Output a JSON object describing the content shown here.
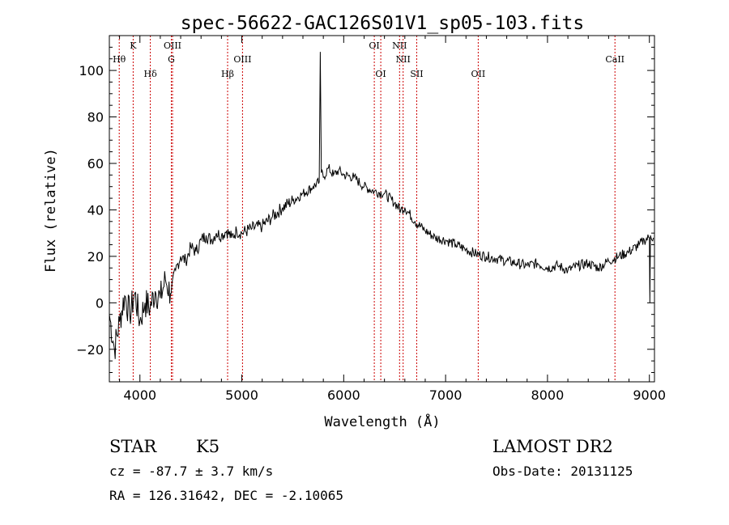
{
  "chart_data": {
    "type": "line",
    "title": "spec-56622-GAC126S01V1_sp05-103.fits",
    "xlabel": "Wavelength (Å)",
    "ylabel": "Flux (relative)",
    "xlim": [
      3700,
      9050
    ],
    "ylim": [
      -34,
      115
    ],
    "x_ticks": [
      4000,
      5000,
      6000,
      7000,
      8000,
      9000
    ],
    "y_ticks": [
      -20,
      0,
      20,
      40,
      60,
      80,
      100
    ],
    "grid": false,
    "line_color": "#000000",
    "marker_color": "#cc0000",
    "series": [
      {
        "x": [
          3700,
          3750,
          3800,
          3850,
          3900,
          3950,
          4000,
          4050,
          4100,
          4150,
          4200,
          4250,
          4300,
          4350,
          4400,
          4450,
          4500,
          4550,
          4600,
          4650,
          4700,
          4750,
          4800,
          4850,
          4900,
          4950,
          5000,
          5100,
          5200,
          5300,
          5400,
          5500,
          5600,
          5700,
          5760,
          5770,
          5780,
          5800,
          5850,
          5900,
          5950,
          6000,
          6100,
          6200,
          6300,
          6400,
          6500,
          6560,
          6600,
          6700,
          6800,
          6900,
          7000,
          7100,
          7200,
          7300,
          7400,
          7500,
          7600,
          7700,
          7800,
          7900,
          8000,
          8100,
          8200,
          8300,
          8400,
          8500,
          8600,
          8700,
          8800,
          8900,
          8950,
          9000,
          9005,
          9010,
          9040
        ],
        "y": [
          -5,
          -20,
          -8,
          3,
          -5,
          4,
          -8,
          0,
          -2,
          5,
          2,
          10,
          4,
          14,
          20,
          18,
          24,
          22,
          27,
          29,
          27,
          30,
          29,
          31,
          28,
          31,
          30,
          32,
          33,
          37,
          41,
          44,
          47,
          50,
          52,
          108,
          56,
          54,
          58,
          55,
          57,
          55,
          54,
          50,
          48,
          47,
          43,
          40,
          41,
          35,
          31,
          28,
          27,
          25,
          23,
          21,
          20,
          19,
          18,
          17,
          16,
          17,
          15,
          16,
          14,
          16,
          17,
          15,
          18,
          20,
          22,
          25,
          27,
          28,
          0,
          29,
          28
        ]
      }
    ],
    "line_markers": [
      {
        "label": "Hθ",
        "x": 3797,
        "row": 2
      },
      {
        "label": "K",
        "x": 3934,
        "row": 1
      },
      {
        "label": "Hδ",
        "x": 4102,
        "row": 3
      },
      {
        "label": "OIII",
        "x": 4320,
        "row": 1
      },
      {
        "label": "G",
        "x": 4308,
        "row": 2
      },
      {
        "label": "Hβ",
        "x": 4861,
        "row": 3
      },
      {
        "label": "OIII",
        "x": 5007,
        "row": 2
      },
      {
        "label": "OI",
        "x": 6300,
        "row": 1
      },
      {
        "label": "OI",
        "x": 6364,
        "row": 3
      },
      {
        "label": "NII",
        "x": 6548,
        "row": 1
      },
      {
        "label": "NII",
        "x": 6583,
        "row": 2
      },
      {
        "label": "SII",
        "x": 6717,
        "row": 3
      },
      {
        "label": "OII",
        "x": 7320,
        "row": 3
      },
      {
        "label": "CaII",
        "x": 8662,
        "row": 2
      }
    ]
  },
  "info": {
    "class": "STAR",
    "subclass": "K5",
    "cz": "cz = -87.7 ± 3.7 km/s",
    "coords": "RA = 126.31642, DEC =  -2.10065",
    "survey": "LAMOST DR2",
    "obs_date": "Obs-Date: 20131125"
  }
}
